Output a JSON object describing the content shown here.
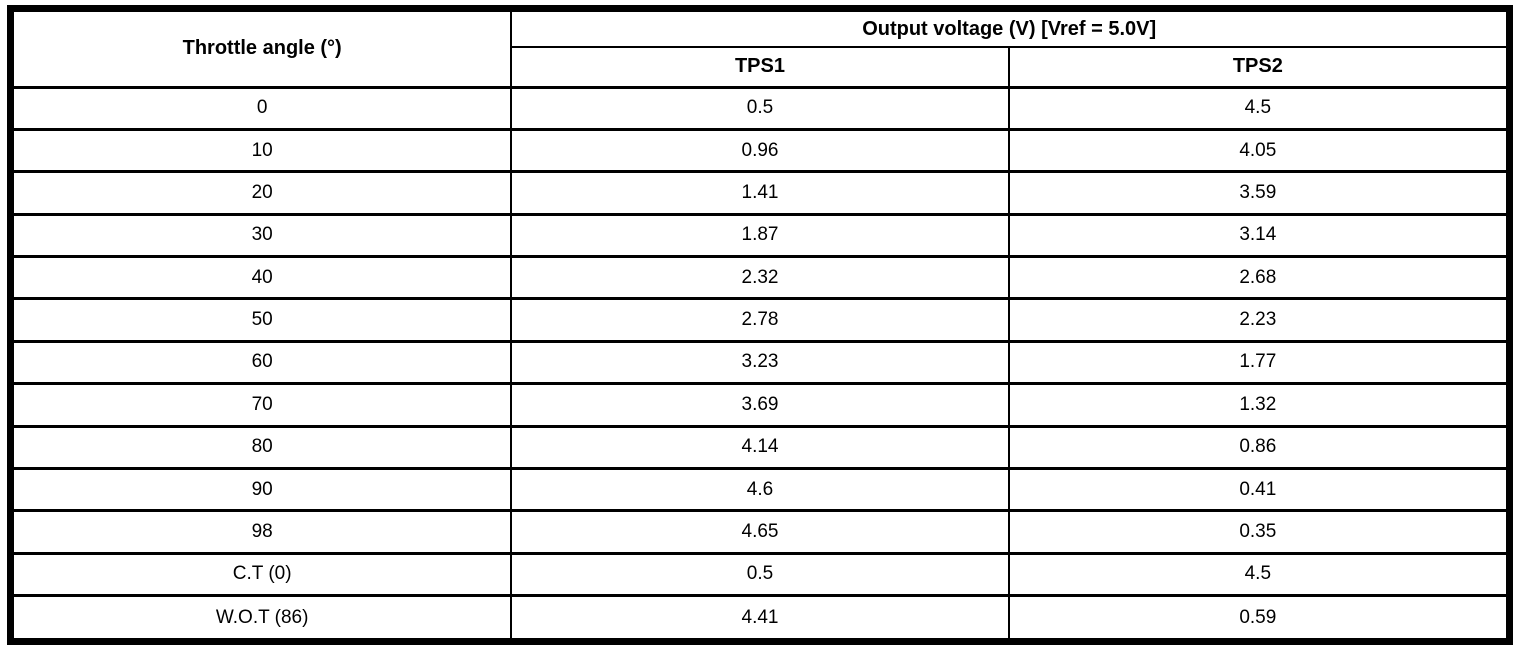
{
  "table": {
    "col1_header": "Throttle angle (°)",
    "group_header": "Output voltage (V) [Vref = 5.0V]",
    "sub_headers": [
      "TPS1",
      "TPS2"
    ],
    "rows": [
      {
        "angle": "0",
        "tps1": "0.5",
        "tps2": "4.5"
      },
      {
        "angle": "10",
        "tps1": "0.96",
        "tps2": "4.05"
      },
      {
        "angle": "20",
        "tps1": "1.41",
        "tps2": "3.59"
      },
      {
        "angle": "30",
        "tps1": "1.87",
        "tps2": "3.14"
      },
      {
        "angle": "40",
        "tps1": "2.32",
        "tps2": "2.68"
      },
      {
        "angle": "50",
        "tps1": "2.78",
        "tps2": "2.23"
      },
      {
        "angle": "60",
        "tps1": "3.23",
        "tps2": "1.77"
      },
      {
        "angle": "70",
        "tps1": "3.69",
        "tps2": "1.32"
      },
      {
        "angle": "80",
        "tps1": "4.14",
        "tps2": "0.86"
      },
      {
        "angle": "90",
        "tps1": "4.6",
        "tps2": "0.41"
      },
      {
        "angle": "98",
        "tps1": "4.65",
        "tps2": "0.35"
      },
      {
        "angle": "C.T (0)",
        "tps1": "0.5",
        "tps2": "4.5"
      },
      {
        "angle": "W.O.T (86)",
        "tps1": "4.41",
        "tps2": "0.59"
      }
    ],
    "colors": {
      "border": "#000000",
      "background": "#ffffff",
      "text": "#000000"
    }
  },
  "chart_data": {
    "type": "table",
    "title": "Output voltage (V) [Vref = 5.0V]",
    "columns": [
      "Throttle angle (°)",
      "TPS1",
      "TPS2"
    ],
    "throttle_angles": [
      "0",
      "10",
      "20",
      "30",
      "40",
      "50",
      "60",
      "70",
      "80",
      "90",
      "98",
      "C.T (0)",
      "W.O.T (86)"
    ],
    "series": [
      {
        "name": "TPS1",
        "values": [
          0.5,
          0.96,
          1.41,
          1.87,
          2.32,
          2.78,
          3.23,
          3.69,
          4.14,
          4.6,
          4.65,
          0.5,
          4.41
        ]
      },
      {
        "name": "TPS2",
        "values": [
          4.5,
          4.05,
          3.59,
          3.14,
          2.68,
          2.23,
          1.77,
          1.32,
          0.86,
          0.41,
          0.35,
          4.5,
          0.59
        ]
      }
    ],
    "vref": "5.0V",
    "units": {
      "angle": "degrees",
      "voltage": "V"
    },
    "grid": true,
    "legend_position": "none"
  }
}
